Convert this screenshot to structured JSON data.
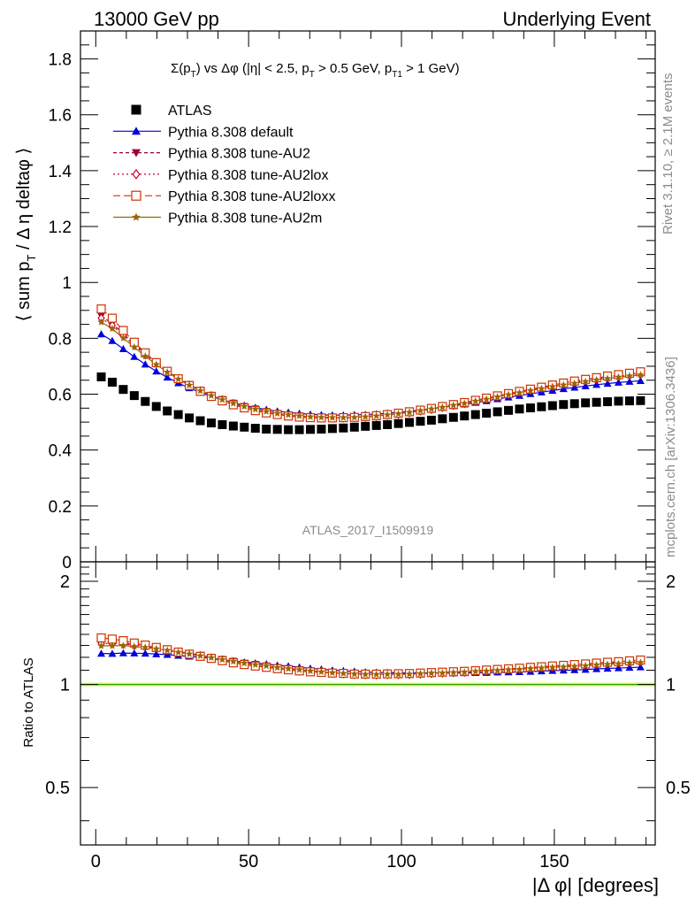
{
  "header": {
    "left": "13000 GeV pp",
    "right": "Underlying Event"
  },
  "side_labels": {
    "rivet": "Rivet 3.1.10, ≥ 2.1M events",
    "mcplots": "mcplots.cern.ch [arXiv:1306.3436]"
  },
  "chart_data": [
    {
      "type": "scatter",
      "title": "Σ(p_T) vs Δφ (|η| < 2.5, p_T > 0.5 GeV, p_T1 > 1 GeV)",
      "title_parts": {
        "a": "Σ(p",
        "a_sub": "T",
        "b": ") vs Δφ (|η| < 2.5, p",
        "b_sub": "T",
        "c": " > 0.5 GeV, p",
        "c_sub": "T1",
        "d": " > 1 GeV)"
      },
      "ylabel": "⟨ sum p_T / Δ η deltaφ ⟩",
      "ylabel_parts": {
        "a": "⟨ sum p",
        "a_sub": "T",
        "b": " / Δ η deltaφ ⟩"
      },
      "watermark": "ATLAS_2017_I1509919",
      "xlim": [
        -5,
        183
      ],
      "ylim": [
        0,
        1.9
      ],
      "yticks": [
        "0",
        "0.2",
        "0.4",
        "0.6",
        "0.8",
        "1",
        "1.2",
        "1.4",
        "1.6",
        "1.8"
      ],
      "legend_position": "top-left",
      "x": [
        1.8,
        5.4,
        9.0,
        12.6,
        16.2,
        19.8,
        23.4,
        27.0,
        30.6,
        34.2,
        37.8,
        41.4,
        45.0,
        48.6,
        52.2,
        55.8,
        59.4,
        63.0,
        66.6,
        70.2,
        73.8,
        77.4,
        81.0,
        84.6,
        88.2,
        91.8,
        95.4,
        99.0,
        102.6,
        106.2,
        109.8,
        113.4,
        117.0,
        120.6,
        124.2,
        127.8,
        131.4,
        135.0,
        138.6,
        142.2,
        145.8,
        149.4,
        153.0,
        156.6,
        160.2,
        163.8,
        167.4,
        171.0,
        174.6,
        178.2
      ],
      "series": [
        {
          "name": "ATLAS",
          "marker": "square-filled",
          "color": "#000000",
          "values": [
            0.662,
            0.643,
            0.617,
            0.595,
            0.574,
            0.556,
            0.54,
            0.527,
            0.515,
            0.505,
            0.497,
            0.491,
            0.486,
            0.482,
            0.478,
            0.475,
            0.474,
            0.473,
            0.473,
            0.474,
            0.475,
            0.477,
            0.479,
            0.482,
            0.485,
            0.488,
            0.491,
            0.495,
            0.499,
            0.503,
            0.507,
            0.512,
            0.517,
            0.522,
            0.527,
            0.532,
            0.537,
            0.542,
            0.547,
            0.551,
            0.555,
            0.559,
            0.563,
            0.566,
            0.569,
            0.571,
            0.573,
            0.575,
            0.576,
            0.577
          ]
        },
        {
          "name": "Pythia 8.308 default",
          "marker": "triangle-up-filled",
          "color": "#0000dd",
          "dash": "",
          "values": [
            0.815,
            0.791,
            0.762,
            0.734,
            0.707,
            0.682,
            0.66,
            0.64,
            0.622,
            0.606,
            0.592,
            0.58,
            0.569,
            0.56,
            0.552,
            0.545,
            0.539,
            0.535,
            0.531,
            0.528,
            0.526,
            0.525,
            0.525,
            0.526,
            0.527,
            0.529,
            0.532,
            0.535,
            0.539,
            0.543,
            0.548,
            0.553,
            0.558,
            0.564,
            0.57,
            0.576,
            0.583,
            0.589,
            0.595,
            0.601,
            0.607,
            0.613,
            0.619,
            0.624,
            0.629,
            0.634,
            0.638,
            0.642,
            0.645,
            0.648
          ]
        },
        {
          "name": "Pythia 8.308 tune-AU2",
          "marker": "triangle-down-filled",
          "color": "#990033",
          "dash": "4,3",
          "values": [
            0.88,
            0.853,
            0.816,
            0.78,
            0.745,
            0.713,
            0.684,
            0.658,
            0.635,
            0.615,
            0.597,
            0.582,
            0.569,
            0.557,
            0.548,
            0.539,
            0.532,
            0.527,
            0.523,
            0.52,
            0.518,
            0.517,
            0.517,
            0.518,
            0.52,
            0.523,
            0.527,
            0.531,
            0.536,
            0.542,
            0.548,
            0.555,
            0.562,
            0.569,
            0.577,
            0.585,
            0.593,
            0.601,
            0.609,
            0.617,
            0.624,
            0.632,
            0.639,
            0.646,
            0.652,
            0.658,
            0.663,
            0.668,
            0.672,
            0.676
          ]
        },
        {
          "name": "Pythia 8.308 tune-AU2lox",
          "marker": "diamond-open",
          "color": "#cc0033",
          "dash": "2,3",
          "values": [
            0.872,
            0.846,
            0.81,
            0.775,
            0.741,
            0.71,
            0.681,
            0.655,
            0.632,
            0.612,
            0.594,
            0.579,
            0.566,
            0.554,
            0.545,
            0.537,
            0.53,
            0.525,
            0.521,
            0.518,
            0.516,
            0.515,
            0.515,
            0.516,
            0.518,
            0.521,
            0.525,
            0.529,
            0.534,
            0.54,
            0.546,
            0.553,
            0.56,
            0.567,
            0.575,
            0.583,
            0.591,
            0.599,
            0.607,
            0.614,
            0.621,
            0.628,
            0.635,
            0.642,
            0.648,
            0.654,
            0.659,
            0.664,
            0.668,
            0.672
          ]
        },
        {
          "name": "Pythia 8.308 tune-AU2loxx",
          "marker": "square-open",
          "color": "#cc3300",
          "dash": "8,4",
          "values": [
            0.905,
            0.872,
            0.828,
            0.786,
            0.748,
            0.713,
            0.682,
            0.655,
            0.631,
            0.61,
            0.592,
            0.576,
            0.562,
            0.551,
            0.541,
            0.533,
            0.527,
            0.522,
            0.518,
            0.516,
            0.515,
            0.515,
            0.516,
            0.517,
            0.52,
            0.523,
            0.527,
            0.532,
            0.537,
            0.543,
            0.549,
            0.556,
            0.563,
            0.57,
            0.578,
            0.586,
            0.594,
            0.602,
            0.61,
            0.618,
            0.625,
            0.633,
            0.64,
            0.647,
            0.653,
            0.659,
            0.665,
            0.67,
            0.675,
            0.68
          ]
        },
        {
          "name": "Pythia 8.308 tune-AU2m",
          "marker": "star",
          "color": "#996600",
          "dash": "",
          "values": [
            0.858,
            0.834,
            0.801,
            0.768,
            0.736,
            0.706,
            0.679,
            0.654,
            0.632,
            0.612,
            0.595,
            0.58,
            0.567,
            0.556,
            0.546,
            0.538,
            0.531,
            0.526,
            0.522,
            0.519,
            0.517,
            0.516,
            0.516,
            0.517,
            0.519,
            0.522,
            0.526,
            0.53,
            0.535,
            0.541,
            0.547,
            0.553,
            0.56,
            0.567,
            0.575,
            0.582,
            0.59,
            0.598,
            0.605,
            0.613,
            0.62,
            0.627,
            0.633,
            0.639,
            0.645,
            0.651,
            0.656,
            0.661,
            0.665,
            0.669
          ]
        }
      ]
    },
    {
      "type": "scatter",
      "ylabel": "Ratio to ATLAS",
      "xlabel": "|Δ φ| [degrees]",
      "xlim": [
        -5,
        183
      ],
      "ylim": [
        0.34,
        2.28
      ],
      "xticks": [
        "0",
        "50",
        "100",
        "150"
      ],
      "yticks": [
        "0.5",
        "1",
        "2"
      ],
      "reference_band": {
        "value": 1.0,
        "band_color": "#ccff66",
        "line_color": "#339900"
      },
      "ratio_note": "ratio panel shows each Pythia series divided by ATLAS"
    }
  ]
}
